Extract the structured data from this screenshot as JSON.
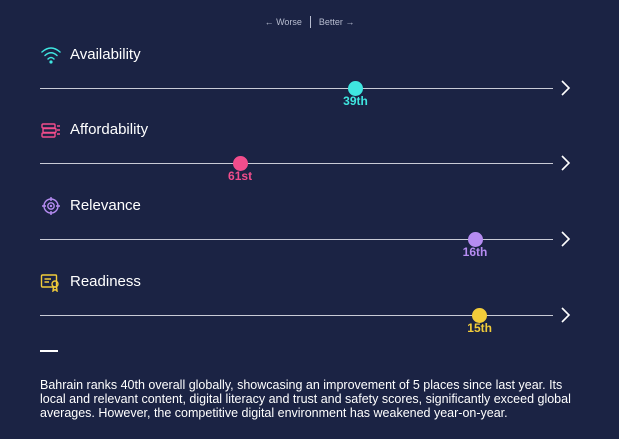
{
  "legend": {
    "worse": "← Worse",
    "better": "Better →"
  },
  "pillars": [
    {
      "name": "Availability",
      "rank": "39th",
      "position": 0.615,
      "color": "#3fe6e0",
      "icon": "wifi-icon"
    },
    {
      "name": "Affordability",
      "rank": "61st",
      "position": 0.39,
      "color": "#f24d8c",
      "icon": "coins-icon"
    },
    {
      "name": "Relevance",
      "rank": "16th",
      "position": 0.848,
      "color": "#b68cf2",
      "icon": "target-icon"
    },
    {
      "name": "Readiness",
      "rank": "15th",
      "position": 0.857,
      "color": "#f2cc3a",
      "icon": "certificate-icon"
    }
  ],
  "summary": "Bahrain ranks 40th overall globally, showcasing an improvement of 5 places since last year. Its local and relevant content, digital literacy and trust and safety scores, significantly exceed global averages. However, the competitive digital environment has weakened year-on-year."
}
